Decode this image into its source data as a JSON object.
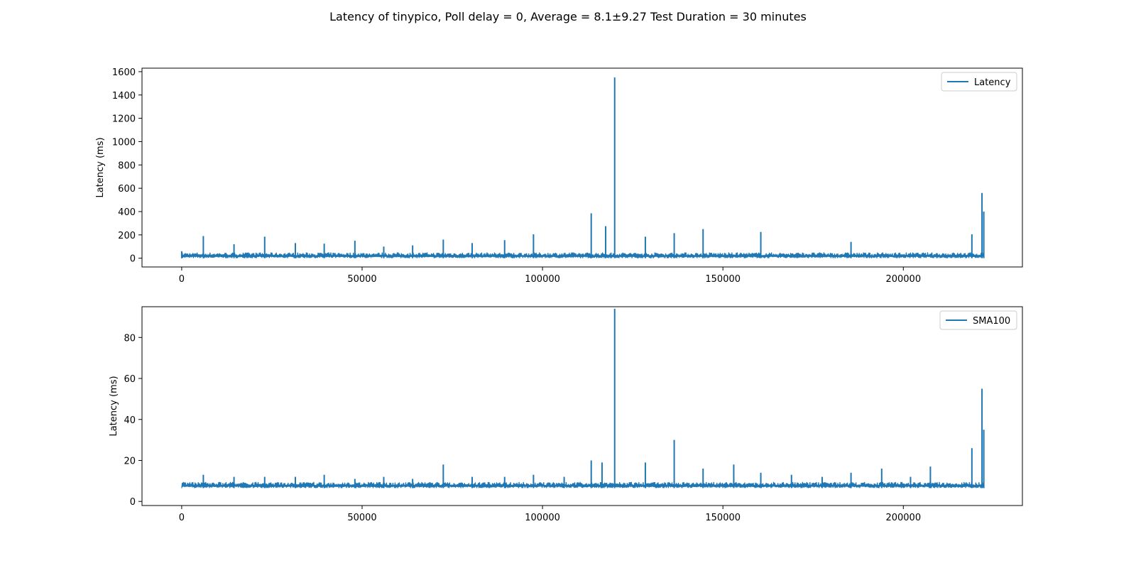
{
  "figure": {
    "title": "Latency of tinypico, Poll delay = 0, Average = 8.1±9.27 Test Duration = 30 minutes"
  },
  "chart_data": [
    {
      "type": "line",
      "title": "",
      "xlabel": "",
      "ylabel": "Latency (ms)",
      "xlim": [
        -11000,
        233000
      ],
      "ylim": [
        -75,
        1630
      ],
      "xticks": [
        0,
        50000,
        100000,
        150000,
        200000
      ],
      "yticks": [
        0,
        200,
        400,
        600,
        800,
        1000,
        1200,
        1400,
        1600
      ],
      "grid": false,
      "legend": "top-right",
      "color": "#1f77b4",
      "series": [
        {
          "name": "Latency",
          "baseline_range": [
            0,
            50
          ],
          "x": [
            0,
            6000,
            14500,
            23000,
            31500,
            39500,
            48000,
            56000,
            64000,
            72500,
            80500,
            89500,
            97500,
            113500,
            117500,
            120000,
            128500,
            136500,
            144500,
            160500,
            185500,
            219000,
            221800,
            222300
          ],
          "y": [
            60,
            190,
            120,
            185,
            130,
            125,
            150,
            100,
            110,
            160,
            130,
            155,
            205,
            385,
            275,
            1550,
            185,
            215,
            250,
            225,
            140,
            205,
            560,
            400
          ]
        }
      ]
    },
    {
      "type": "line",
      "title": "",
      "xlabel": "",
      "ylabel": "Latency (ms)",
      "xlim": [
        -11000,
        233000
      ],
      "ylim": [
        -2,
        95
      ],
      "xticks": [
        0,
        50000,
        100000,
        150000,
        200000
      ],
      "yticks": [
        0,
        20,
        40,
        60,
        80
      ],
      "grid": false,
      "legend": "top-right",
      "color": "#1f77b4",
      "series": [
        {
          "name": "SMA100",
          "baseline_range": [
            6.5,
            9.5
          ],
          "x": [
            6000,
            14500,
            23000,
            31500,
            39500,
            48000,
            56000,
            64000,
            72500,
            80500,
            89500,
            97500,
            106000,
            113500,
            116500,
            120000,
            128500,
            136500,
            144500,
            153000,
            160500,
            169000,
            177500,
            185500,
            194000,
            202000,
            207500,
            219000,
            221800,
            222300
          ],
          "y": [
            13,
            12,
            12,
            12,
            13,
            11,
            12,
            11,
            18,
            12,
            12,
            13,
            12,
            20,
            19,
            94,
            19,
            30,
            16,
            18,
            14,
            13,
            12,
            14,
            16,
            12,
            17,
            26,
            55,
            35
          ]
        }
      ]
    }
  ]
}
